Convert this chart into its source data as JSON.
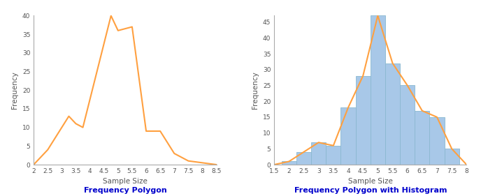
{
  "chart1": {
    "title": "Frequency Polygon",
    "xlabel": "Sample Size",
    "ylabel": "Frequency",
    "line_color": "#FFA040",
    "line_width": 1.5,
    "x": [
      2.0,
      2.5,
      3.0,
      3.25,
      3.5,
      3.75,
      4.75,
      5.0,
      5.5,
      6.0,
      6.5,
      7.0,
      7.5,
      8.0,
      8.5
    ],
    "y": [
      0,
      4,
      10,
      13,
      11,
      10,
      40,
      36,
      37,
      9,
      9,
      3,
      1,
      0.5,
      0
    ],
    "xlim": [
      2,
      8.5
    ],
    "ylim": [
      0,
      40
    ],
    "xticks": [
      2,
      2.5,
      3,
      3.5,
      4,
      4.5,
      5,
      5.5,
      6,
      6.5,
      7,
      7.5,
      8,
      8.5
    ],
    "yticks": [
      0,
      5,
      10,
      15,
      20,
      25,
      30,
      35,
      40
    ]
  },
  "chart2": {
    "title": "Frequency Polygon with Histogram",
    "xlabel": "Sample Size",
    "ylabel": "Frequency",
    "line_color": "#FFA040",
    "bar_color": "#A8C8E8",
    "bar_edge_color": "#8ab8d0",
    "line_width": 1.5,
    "bar_lefts": [
      1.75,
      2.25,
      2.75,
      3.25,
      3.75,
      4.25,
      4.75,
      5.25,
      5.75,
      6.25,
      6.75,
      7.25
    ],
    "bar_heights": [
      1,
      4,
      7,
      6,
      18,
      28,
      47,
      32,
      25,
      17,
      15,
      5
    ],
    "bar_width": 0.5,
    "line_x": [
      1.5,
      2.0,
      2.5,
      3.0,
      3.5,
      4.0,
      4.5,
      5.0,
      5.5,
      6.0,
      6.5,
      7.0,
      7.5,
      8.0
    ],
    "line_y": [
      0,
      1,
      4,
      7,
      6,
      18,
      28,
      47,
      32,
      25,
      17,
      15,
      5,
      0
    ],
    "xlim": [
      1.5,
      8
    ],
    "ylim": [
      0,
      47
    ],
    "xticks": [
      1.5,
      2,
      2.5,
      3,
      3.5,
      4,
      4.5,
      5,
      5.5,
      6,
      6.5,
      7,
      7.5,
      8
    ],
    "yticks": [
      0,
      5,
      10,
      15,
      20,
      25,
      30,
      35,
      40,
      45
    ]
  },
  "title_color": "#0000CC",
  "title_fontsize": 8,
  "bg_color": "#ffffff",
  "border_color": "#aaaaaa",
  "tick_color": "#555555",
  "label_fontsize": 7.5,
  "tick_fontsize": 6.5
}
